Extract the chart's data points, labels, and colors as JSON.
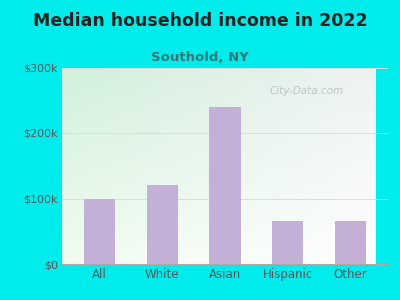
{
  "title": "Median household income in 2022",
  "subtitle": "Southold, NY",
  "categories": [
    "All",
    "White",
    "Asian",
    "Hispanic",
    "Other"
  ],
  "values": [
    100000,
    120000,
    240000,
    65000,
    65000
  ],
  "bar_color": "#c4afd6",
  "ylim": [
    0,
    300000
  ],
  "yticks": [
    0,
    100000,
    200000,
    300000
  ],
  "ytick_labels": [
    "$0",
    "$100k",
    "$200k",
    "$300k"
  ],
  "outer_bg": "#00ecec",
  "title_color": "#222222",
  "subtitle_color": "#337777",
  "watermark": "City-Data.com",
  "title_fontsize": 12.5,
  "subtitle_fontsize": 9.5,
  "tick_label_fontsize": 8,
  "xlabel_fontsize": 8.5,
  "gradient_topleft": [
    0.82,
    0.94,
    0.86
  ],
  "gradient_topright": [
    0.93,
    0.95,
    0.95
  ],
  "gradient_bottomleft": [
    0.94,
    0.99,
    0.94
  ],
  "gradient_bottomright": [
    1.0,
    1.0,
    1.0
  ]
}
